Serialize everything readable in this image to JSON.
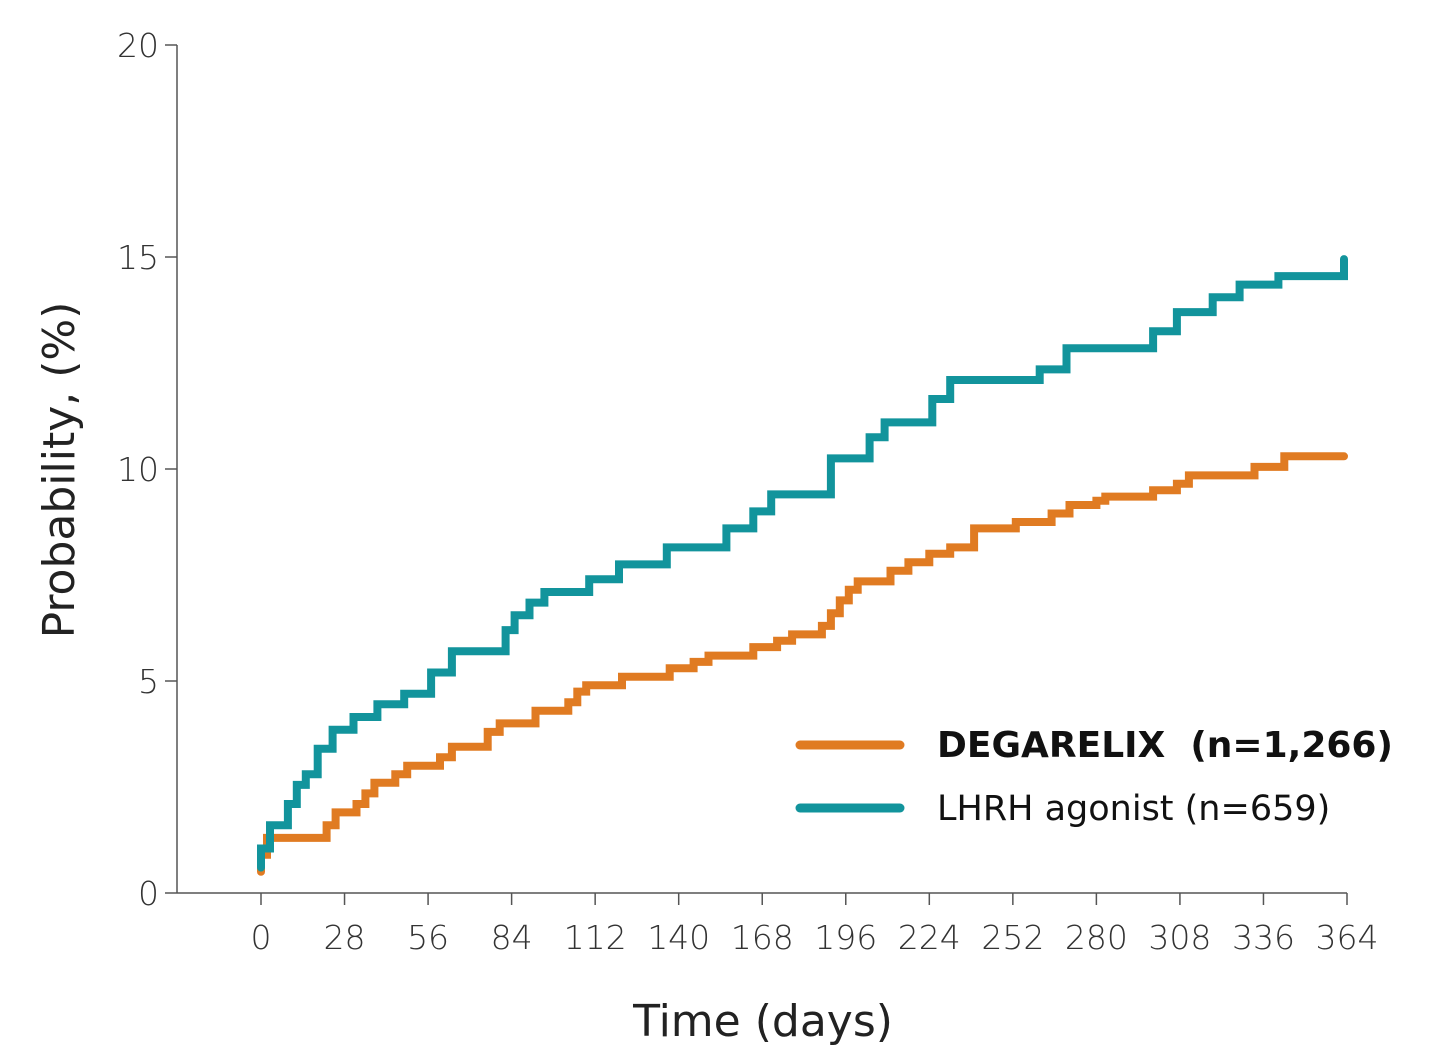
{
  "chart_data": {
    "type": "line",
    "xlabel": "Time (days)",
    "ylabel": "Probability, (%)",
    "xlim": [
      0,
      364
    ],
    "ylim": [
      0,
      20
    ],
    "x_ticks": [
      0,
      28,
      56,
      84,
      112,
      140,
      168,
      196,
      224,
      252,
      280,
      308,
      336,
      364
    ],
    "y_ticks": [
      0,
      5,
      10,
      15,
      20
    ],
    "grid": false,
    "legend_position": "bottom-right",
    "step": true,
    "series": [
      {
        "name": "DEGARELIX  (n=1,266)",
        "color": "#E07B22",
        "bold_label": true,
        "points": [
          [
            0,
            0.5
          ],
          [
            0,
            0.9
          ],
          [
            2,
            0.9
          ],
          [
            2,
            1.3
          ],
          [
            22,
            1.3
          ],
          [
            22,
            1.6
          ],
          [
            25,
            1.6
          ],
          [
            25,
            1.9
          ],
          [
            32,
            1.9
          ],
          [
            32,
            2.1
          ],
          [
            35,
            2.1
          ],
          [
            35,
            2.35
          ],
          [
            38,
            2.35
          ],
          [
            38,
            2.6
          ],
          [
            45,
            2.6
          ],
          [
            45,
            2.8
          ],
          [
            49,
            2.8
          ],
          [
            49,
            3.0
          ],
          [
            60,
            3.0
          ],
          [
            60,
            3.2
          ],
          [
            64,
            3.2
          ],
          [
            64,
            3.45
          ],
          [
            76,
            3.45
          ],
          [
            76,
            3.8
          ],
          [
            80,
            3.8
          ],
          [
            80,
            4.0
          ],
          [
            92,
            4.0
          ],
          [
            92,
            4.3
          ],
          [
            103,
            4.3
          ],
          [
            103,
            4.5
          ],
          [
            106,
            4.5
          ],
          [
            106,
            4.75
          ],
          [
            109,
            4.75
          ],
          [
            109,
            4.9
          ],
          [
            121,
            4.9
          ],
          [
            121,
            5.1
          ],
          [
            137,
            5.1
          ],
          [
            137,
            5.3
          ],
          [
            145,
            5.3
          ],
          [
            145,
            5.45
          ],
          [
            150,
            5.45
          ],
          [
            150,
            5.6
          ],
          [
            165,
            5.6
          ],
          [
            165,
            5.8
          ],
          [
            173,
            5.8
          ],
          [
            173,
            5.95
          ],
          [
            178,
            5.95
          ],
          [
            178,
            6.1
          ],
          [
            188,
            6.1
          ],
          [
            188,
            6.3
          ],
          [
            191,
            6.3
          ],
          [
            191,
            6.6
          ],
          [
            194,
            6.6
          ],
          [
            194,
            6.9
          ],
          [
            197,
            6.9
          ],
          [
            197,
            7.15
          ],
          [
            200,
            7.15
          ],
          [
            200,
            7.35
          ],
          [
            211,
            7.35
          ],
          [
            211,
            7.6
          ],
          [
            217,
            7.6
          ],
          [
            217,
            7.8
          ],
          [
            224,
            7.8
          ],
          [
            224,
            8.0
          ],
          [
            231,
            8.0
          ],
          [
            231,
            8.15
          ],
          [
            239,
            8.15
          ],
          [
            239,
            8.6
          ],
          [
            253,
            8.6
          ],
          [
            253,
            8.75
          ],
          [
            265,
            8.75
          ],
          [
            265,
            8.95
          ],
          [
            271,
            8.95
          ],
          [
            271,
            9.15
          ],
          [
            280,
            9.15
          ],
          [
            280,
            9.25
          ],
          [
            283,
            9.25
          ],
          [
            283,
            9.35
          ],
          [
            299,
            9.35
          ],
          [
            299,
            9.5
          ],
          [
            307,
            9.5
          ],
          [
            307,
            9.65
          ],
          [
            311,
            9.65
          ],
          [
            311,
            9.85
          ],
          [
            333,
            9.85
          ],
          [
            333,
            10.05
          ],
          [
            343,
            10.05
          ],
          [
            343,
            10.3
          ],
          [
            363,
            10.3
          ]
        ]
      },
      {
        "name": "LHRH agonist (n=659)",
        "color": "#12949C",
        "bold_label": false,
        "points": [
          [
            0,
            0.6
          ],
          [
            0,
            1.05
          ],
          [
            3,
            1.05
          ],
          [
            3,
            1.6
          ],
          [
            9,
            1.6
          ],
          [
            9,
            2.1
          ],
          [
            12,
            2.1
          ],
          [
            12,
            2.55
          ],
          [
            15,
            2.55
          ],
          [
            15,
            2.8
          ],
          [
            19,
            2.8
          ],
          [
            19,
            3.4
          ],
          [
            24,
            3.4
          ],
          [
            24,
            3.85
          ],
          [
            31,
            3.85
          ],
          [
            31,
            4.15
          ],
          [
            39,
            4.15
          ],
          [
            39,
            4.45
          ],
          [
            48,
            4.45
          ],
          [
            48,
            4.7
          ],
          [
            57,
            4.7
          ],
          [
            57,
            5.2
          ],
          [
            64,
            5.2
          ],
          [
            64,
            5.7
          ],
          [
            82,
            5.7
          ],
          [
            82,
            6.2
          ],
          [
            85,
            6.2
          ],
          [
            85,
            6.55
          ],
          [
            90,
            6.55
          ],
          [
            90,
            6.85
          ],
          [
            95,
            6.85
          ],
          [
            95,
            7.1
          ],
          [
            110,
            7.1
          ],
          [
            110,
            7.4
          ],
          [
            120,
            7.4
          ],
          [
            120,
            7.75
          ],
          [
            136,
            7.75
          ],
          [
            136,
            8.15
          ],
          [
            156,
            8.15
          ],
          [
            156,
            8.6
          ],
          [
            165,
            8.6
          ],
          [
            165,
            9.0
          ],
          [
            171,
            9.0
          ],
          [
            171,
            9.4
          ],
          [
            191,
            9.4
          ],
          [
            191,
            10.25
          ],
          [
            204,
            10.25
          ],
          [
            204,
            10.75
          ],
          [
            209,
            10.75
          ],
          [
            209,
            11.1
          ],
          [
            225,
            11.1
          ],
          [
            225,
            11.65
          ],
          [
            231,
            11.65
          ],
          [
            231,
            12.1
          ],
          [
            261,
            12.1
          ],
          [
            261,
            12.35
          ],
          [
            270,
            12.35
          ],
          [
            270,
            12.85
          ],
          [
            299,
            12.85
          ],
          [
            299,
            13.25
          ],
          [
            307,
            13.25
          ],
          [
            307,
            13.7
          ],
          [
            319,
            13.7
          ],
          [
            319,
            14.05
          ],
          [
            328,
            14.05
          ],
          [
            328,
            14.35
          ],
          [
            341,
            14.35
          ],
          [
            341,
            14.55
          ],
          [
            363,
            14.55
          ],
          [
            363,
            14.95
          ]
        ]
      }
    ]
  }
}
